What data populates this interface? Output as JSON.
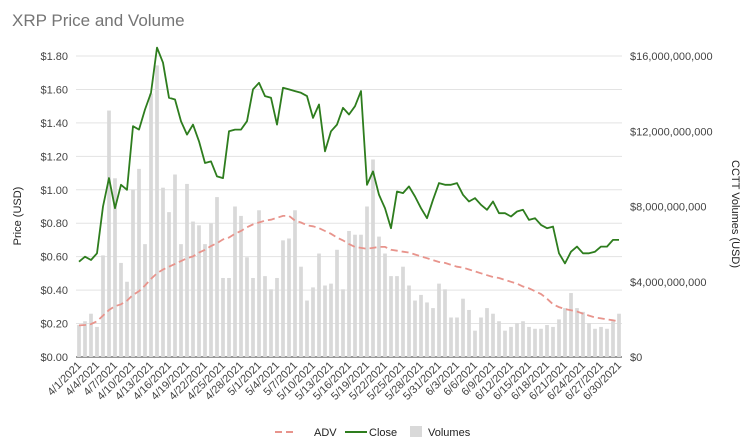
{
  "chart_data": {
    "type": "bar",
    "title": "XRP Price and Volume",
    "ylabel_left": "Price (USD)",
    "ylabel_right": "CCTT Volumes (USD)",
    "ylim_left": [
      0,
      1.8
    ],
    "ylim_right": [
      0,
      16000000000
    ],
    "left_ticks": [
      "$0.00",
      "$0.20",
      "$0.40",
      "$0.60",
      "$0.80",
      "$1.00",
      "$1.20",
      "$1.40",
      "$1.60",
      "$1.80"
    ],
    "right_ticks": [
      "$0",
      "$4,000,000,000",
      "$8,000,000,000",
      "$12,000,000,000",
      "$16,000,000,000"
    ],
    "x_tick_labels": [
      "4/1/2021",
      "4/4/2021",
      "4/7/2021",
      "4/10/2021",
      "4/13/2021",
      "4/16/2021",
      "4/19/2021",
      "4/22/2021",
      "4/25/2021",
      "4/28/2021",
      "5/1/2021",
      "5/4/2021",
      "5/7/2021",
      "5/10/2021",
      "5/13/2021",
      "5/16/2021",
      "5/19/2021",
      "5/22/2021",
      "5/25/2021",
      "5/28/2021",
      "5/31/2021",
      "6/3/2021",
      "6/6/2021",
      "6/9/2021",
      "6/12/2021",
      "6/15/2021",
      "6/18/2021",
      "6/21/2021",
      "6/24/2021",
      "6/27/2021",
      "6/30/2021"
    ],
    "legend_position": "bottom",
    "series": [
      {
        "name": "ADV",
        "type": "line",
        "axis": "right",
        "style": "dashed",
        "color": "#e8948c",
        "values": [
          1680000000,
          1700000000,
          1750000000,
          1900000000,
          2200000000,
          2500000000,
          2700000000,
          2800000000,
          3000000000,
          3300000000,
          3500000000,
          3800000000,
          4150000000,
          4450000000,
          4650000000,
          4800000000,
          4950000000,
          5100000000,
          5250000000,
          5350000000,
          5550000000,
          5700000000,
          5900000000,
          6050000000,
          6250000000,
          6350000000,
          6550000000,
          6700000000,
          6900000000,
          7050000000,
          7150000000,
          7250000000,
          7300000000,
          7400000000,
          7500000000,
          7500000000,
          7250000000,
          7150000000,
          7000000000,
          6950000000,
          6850000000,
          6700000000,
          6550000000,
          6350000000,
          6200000000,
          6000000000,
          5850000000,
          5800000000,
          5750000000,
          5800000000,
          5850000000,
          5850000000,
          5700000000,
          5650000000,
          5600000000,
          5550000000,
          5450000000,
          5350000000,
          5250000000,
          5150000000,
          5050000000,
          5000000000,
          4900000000,
          4800000000,
          4750000000,
          4650000000,
          4550000000,
          4450000000,
          4350000000,
          4250000000,
          4200000000,
          4100000000,
          4000000000,
          3900000000,
          3750000000,
          3650000000,
          3500000000,
          3350000000,
          3100000000,
          2800000000,
          2650000000,
          2550000000,
          2480000000,
          2420000000,
          2300000000,
          2200000000,
          2100000000,
          2050000000,
          2000000000,
          1950000000,
          1900000000
        ]
      },
      {
        "name": "Close",
        "type": "line",
        "axis": "left",
        "color": "#2e7d1e",
        "values": [
          0.57,
          0.6,
          0.58,
          0.62,
          0.9,
          1.07,
          0.89,
          1.03,
          1.0,
          1.38,
          1.36,
          1.48,
          1.58,
          1.85,
          1.76,
          1.55,
          1.54,
          1.41,
          1.33,
          1.39,
          1.29,
          1.16,
          1.17,
          1.08,
          1.07,
          1.35,
          1.36,
          1.36,
          1.41,
          1.6,
          1.64,
          1.56,
          1.55,
          1.39,
          1.61,
          1.6,
          1.59,
          1.58,
          1.56,
          1.43,
          1.51,
          1.23,
          1.35,
          1.39,
          1.49,
          1.45,
          1.5,
          1.59,
          1.03,
          1.11,
          0.97,
          0.89,
          0.77,
          0.99,
          0.98,
          1.02,
          0.96,
          0.89,
          0.83,
          0.94,
          1.04,
          1.03,
          1.03,
          1.04,
          0.97,
          0.93,
          0.95,
          0.91,
          0.88,
          0.93,
          0.86,
          0.86,
          0.84,
          0.87,
          0.88,
          0.82,
          0.83,
          0.79,
          0.77,
          0.78,
          0.62,
          0.56,
          0.63,
          0.66,
          0.62,
          0.62,
          0.63,
          0.66,
          0.66,
          0.7,
          0.7
        ]
      },
      {
        "name": "Volumes",
        "type": "bar",
        "axis": "right",
        "color": "#d9d9d9",
        "values": [
          1700000000,
          1900000000,
          2300000000,
          1600000000,
          5400000000,
          13100000000,
          9500000000,
          5000000000,
          4000000000,
          8900000000,
          10000000000,
          6000000000,
          14000000000,
          15500000000,
          9000000000,
          7700000000,
          9700000000,
          6000000000,
          9200000000,
          7200000000,
          7000000000,
          6000000000,
          7100000000,
          8500000000,
          4200000000,
          4200000000,
          8000000000,
          7500000000,
          5300000000,
          4200000000,
          7800000000,
          4300000000,
          3600000000,
          4200000000,
          6200000000,
          6300000000,
          7800000000,
          4800000000,
          3000000000,
          3700000000,
          5500000000,
          3800000000,
          3900000000,
          5700000000,
          3600000000,
          6700000000,
          6500000000,
          6500000000,
          8000000000,
          10500000000,
          6400000000,
          5500000000,
          4300000000,
          4300000000,
          4800000000,
          3800000000,
          3000000000,
          3300000000,
          2900000000,
          2600000000,
          3900000000,
          3600000000,
          2100000000,
          2100000000,
          3100000000,
          2500000000,
          1400000000,
          2100000000,
          2600000000,
          2300000000,
          1900000000,
          1400000000,
          1600000000,
          1800000000,
          1900000000,
          1600000000,
          1500000000,
          1500000000,
          1700000000,
          1600000000,
          2000000000,
          2600000000,
          3400000000,
          2600000000,
          2400000000,
          1800000000,
          1500000000,
          1600000000,
          1500000000,
          1900000000,
          2300000000
        ]
      }
    ]
  }
}
